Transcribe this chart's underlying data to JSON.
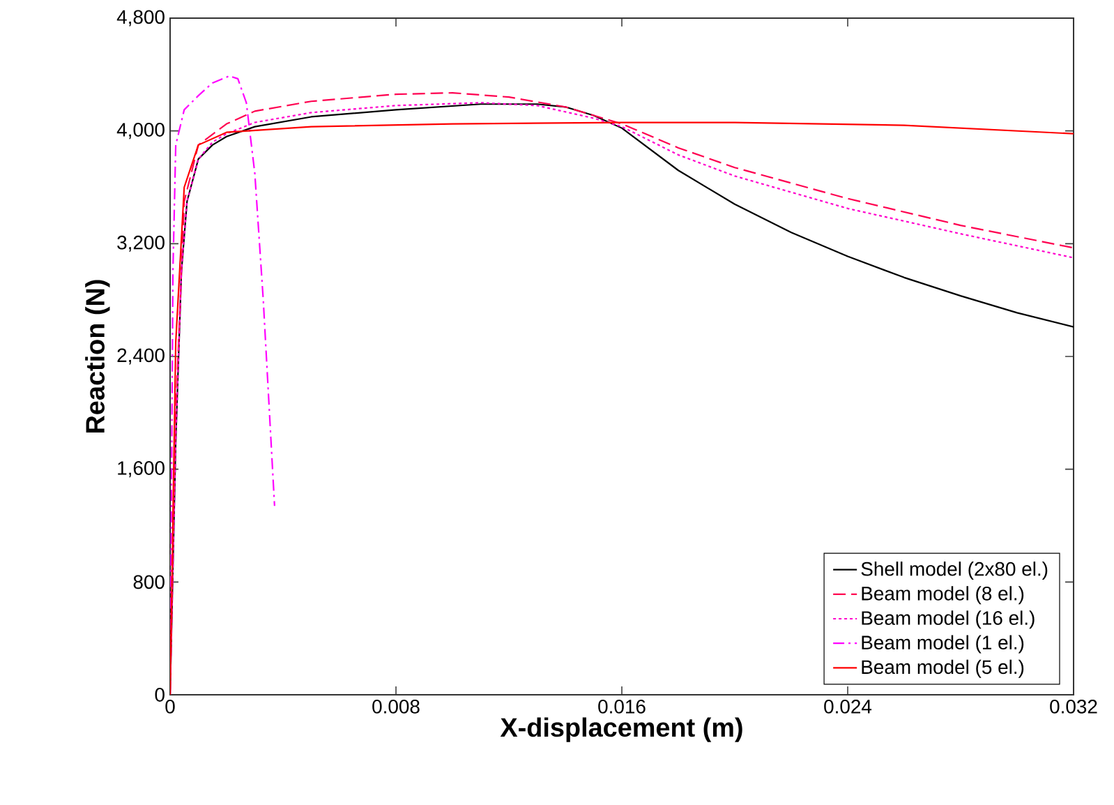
{
  "chart_data": {
    "type": "line",
    "xlabel": "X-displacement (m)",
    "ylabel": "Reaction (N)",
    "xlim": [
      0,
      0.032
    ],
    "ylim": [
      0,
      4800
    ],
    "xticks": [
      0,
      0.008,
      0.016,
      0.024,
      0.032
    ],
    "yticks": [
      0,
      800,
      {
        "value": 1600,
        "label": "1,600"
      },
      {
        "value": 2400,
        "label": "2,400"
      },
      {
        "value": 3200,
        "label": "3,200"
      },
      {
        "value": 4000,
        "label": "4,000"
      },
      {
        "value": 4800,
        "label": "4,800"
      }
    ],
    "grid": false,
    "legend": "bottom right",
    "marker": "none",
    "series": [
      {
        "name": "Shell model (2x80 el.)",
        "color": "#000000",
        "line_style": "solid",
        "x": [
          0,
          0.0002,
          0.0004,
          0.0006,
          0.001,
          0.0015,
          0.002,
          0.003,
          0.005,
          0.008,
          0.011,
          0.013,
          0.014,
          0.015,
          0.016,
          0.018,
          0.02,
          0.022,
          0.024,
          0.026,
          0.028,
          0.03,
          0.032
        ],
        "values": [
          0,
          1800,
          3000,
          3500,
          3800,
          3900,
          3960,
          4030,
          4100,
          4150,
          4190,
          4190,
          4170,
          4110,
          4020,
          3720,
          3480,
          3280,
          3110,
          2960,
          2830,
          2710,
          2610
        ]
      },
      {
        "name": "Beam model (8 el.)",
        "color": "#ff0050",
        "line_style": "dashed",
        "x": [
          0,
          0.0002,
          0.0005,
          0.001,
          0.002,
          0.003,
          0.005,
          0.008,
          0.01,
          0.012,
          0.014,
          0.015,
          0.016,
          0.018,
          0.02,
          0.024,
          0.028,
          0.032
        ],
        "values": [
          0,
          2000,
          3500,
          3900,
          4050,
          4140,
          4210,
          4260,
          4270,
          4240,
          4170,
          4110,
          4050,
          3880,
          3740,
          3520,
          3330,
          3170
        ]
      },
      {
        "name": "Beam model (16 el.)",
        "color": "#ff00cc",
        "line_style": "dotted",
        "x": [
          0,
          0.0002,
          0.0004,
          0.0006,
          0.001,
          0.0015,
          0.002,
          0.003,
          0.005,
          0.008,
          0.011,
          0.013,
          0.015,
          0.016,
          0.018,
          0.02,
          0.024,
          0.028,
          0.032
        ],
        "values": [
          0,
          1800,
          3000,
          3500,
          3800,
          3920,
          3980,
          4060,
          4130,
          4180,
          4200,
          4180,
          4090,
          4030,
          3830,
          3680,
          3450,
          3270,
          3100
        ]
      },
      {
        "name": "Beam model (1 el.)",
        "color": "#ff00ff",
        "line_style": "dashdot",
        "x": [
          0,
          0.0001,
          0.0002,
          0.0005,
          0.001,
          0.0015,
          0.0021,
          0.0024,
          0.0027,
          0.003,
          0.0033,
          0.0037
        ],
        "values": [
          0,
          3000,
          3900,
          4150,
          4250,
          4340,
          4390,
          4370,
          4200,
          3700,
          2800,
          1340
        ]
      },
      {
        "name": "Beam model (5 el.)",
        "color": "#ff0000",
        "line_style": "solid",
        "x": [
          0,
          0.0002,
          0.0005,
          0.001,
          0.002,
          0.005,
          0.01,
          0.016,
          0.02,
          0.026,
          0.032
        ],
        "values": [
          0,
          2500,
          3600,
          3900,
          3990,
          4030,
          4050,
          4060,
          4060,
          4040,
          3980
        ]
      }
    ]
  }
}
